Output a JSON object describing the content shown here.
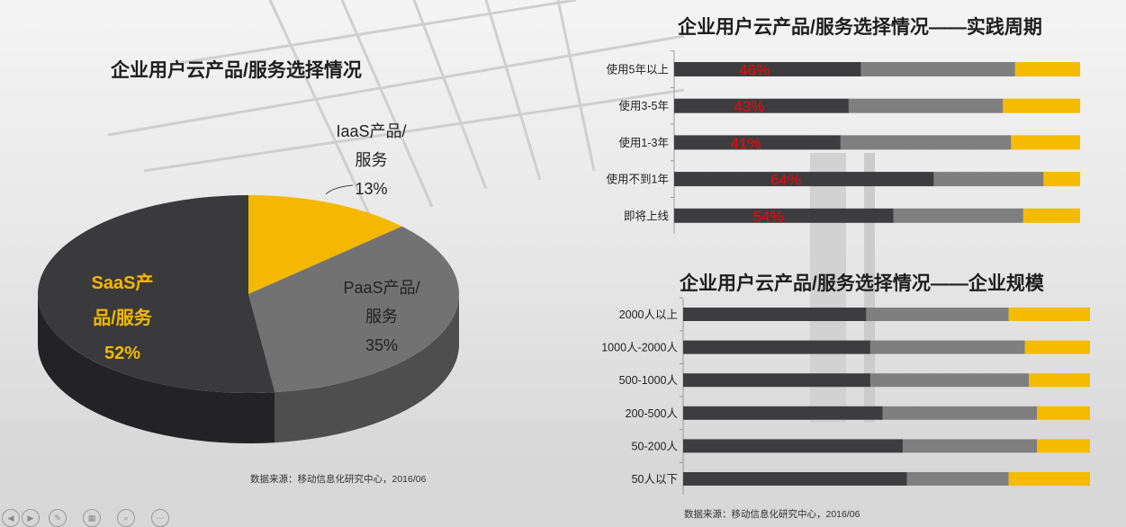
{
  "pie": {
    "title": "企业用户云产品/服务选择情况",
    "labels": {
      "saas": [
        "SaaS产",
        "品/服务",
        "52%"
      ],
      "paas": [
        "PaaS产品/",
        "服务",
        "35%"
      ],
      "iaas": [
        "IaaS产品/",
        "服务",
        "13%"
      ]
    },
    "source": "数据来源：移动信息化研究中心，2016/06"
  },
  "chart_data": [
    {
      "type": "pie",
      "title": "企业用户云产品/服务选择情况",
      "categories": [
        "SaaS产品/服务",
        "PaaS产品/服务",
        "IaaS产品/服务"
      ],
      "values": [
        52,
        35,
        13
      ],
      "colors": [
        "#3a3a3c",
        "#727272",
        "#f5b800"
      ]
    },
    {
      "type": "bar",
      "orientation": "horizontal",
      "stacked": true,
      "title": "企业用户云产品/服务选择情况——实践周期",
      "categories": [
        "使用5年以上",
        "使用3-5年",
        "使用1-3年",
        "使用不到1年",
        "即将上线"
      ],
      "series": [
        {
          "values": [
            46,
            43,
            41,
            64,
            54
          ],
          "color": "#3d3d3f",
          "labels": [
            "46%",
            "43%",
            "41%",
            "64%",
            "54%"
          ]
        },
        {
          "values": [
            38,
            38,
            42,
            27,
            32
          ],
          "color": "#7f7f7f"
        },
        {
          "values": [
            16,
            19,
            17,
            9,
            14
          ],
          "color": "#f5bb00"
        }
      ],
      "label_color": "#ff0000",
      "xlim": [
        0,
        100
      ]
    },
    {
      "type": "bar",
      "orientation": "horizontal",
      "stacked": true,
      "title": "企业用户云产品/服务选择情况——企业规模",
      "categories": [
        "2000人以上",
        "1000人-2000人",
        "500-1000人",
        "200-500人",
        "50-200人",
        "50人以下"
      ],
      "series": [
        {
          "values": [
            45,
            46,
            46,
            49,
            54,
            55
          ],
          "color": "#3d3d3f"
        },
        {
          "values": [
            35,
            38,
            39,
            38,
            33,
            25
          ],
          "color": "#7f7f7f"
        },
        {
          "values": [
            20,
            16,
            15,
            13,
            13,
            20
          ],
          "color": "#f5bb00"
        }
      ],
      "xlim": [
        0,
        100
      ]
    }
  ],
  "bars1": {
    "title": "企业用户云产品/服务选择情况——实践周期",
    "source": ""
  },
  "bars2": {
    "title": "企业用户云产品/服务选择情况——企业规模",
    "source": "数据来源：移动信息化研究中心，2016/06"
  },
  "controls": [
    "play-icon",
    "pen-icon",
    "slides-icon",
    "zoom-icon",
    "more-icon"
  ]
}
